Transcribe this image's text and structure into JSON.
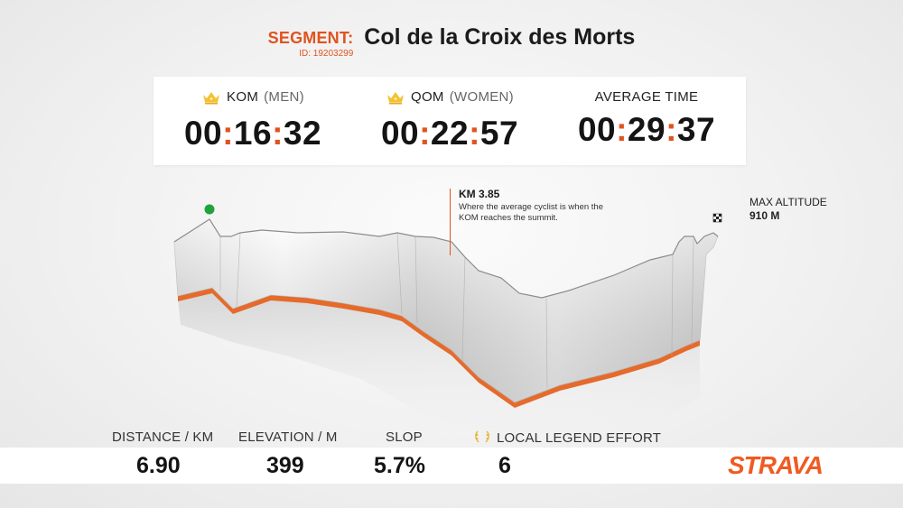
{
  "segment": {
    "label": "SEGMENT:",
    "name": "Col de la Croix des Morts",
    "id_text": "ID: 19203299"
  },
  "times": [
    {
      "title": "KOM",
      "subtitle": "(MEN)",
      "hh": "00",
      "mm": "16",
      "ss": "32",
      "icon": "crown-icon"
    },
    {
      "title": "QOM",
      "subtitle": "(WOMEN)",
      "hh": "00",
      "mm": "22",
      "ss": "57",
      "icon": "crown-icon"
    },
    {
      "title": "AVERAGE TIME",
      "subtitle": "",
      "hh": "00",
      "mm": "29",
      "ss": "37",
      "icon": ""
    }
  ],
  "annotation": {
    "title": "KM 3.85",
    "text": "Where the average cyclist is when the KOM reaches the summit."
  },
  "max_altitude": {
    "label": "MAX ALTITUDE",
    "value": "910 M"
  },
  "stats": [
    {
      "label": "DISTANCE / KM",
      "value": "6.90"
    },
    {
      "label": "ELEVATION / M",
      "value": "399"
    },
    {
      "label": "SLOP",
      "value": "5.7%"
    },
    {
      "label": "LOCAL LEGEND EFFORT",
      "value": "6",
      "icon": "laurel-icon"
    }
  ],
  "brand": "STRAVA",
  "colors": {
    "accent": "#e0531f",
    "brand": "#f05a22",
    "start_marker": "#1fa33a"
  }
}
